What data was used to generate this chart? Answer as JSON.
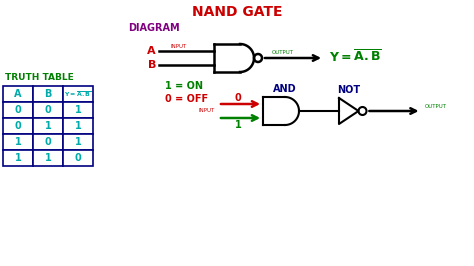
{
  "title": "NAND GATE",
  "title_color": "#cc0000",
  "diagram_label": "DIAGRAM",
  "diagram_label_color": "#800080",
  "truth_table_label": "TRUTH TABLE",
  "truth_table_label_color": "#008000",
  "bg_color": "#ffffff",
  "and_label": "AND",
  "not_label": "NOT",
  "output_label": "OUTPUT",
  "input_label": "INPUT",
  "on_label": "1 = ON",
  "off_label": "0 = OFF",
  "on_color": "#008000",
  "off_color": "#cc0000",
  "table_headers": [
    "A",
    "B",
    "Y = A.B"
  ],
  "table_data": [
    [
      "0",
      "0",
      "1"
    ],
    [
      "0",
      "1",
      "1"
    ],
    [
      "1",
      "0",
      "1"
    ],
    [
      "1",
      "1",
      "0"
    ]
  ],
  "table_header_color": "#00aaaa",
  "table_data_color": "#00aaaa",
  "table_border_color": "#000080",
  "gate_color": "#000000",
  "label_a_color": "#cc0000",
  "label_b_color": "#cc0000",
  "input_label_color": "#cc0000",
  "output_label_color": "#008000",
  "y_label_color": "#008000",
  "and_not_label_color": "#000080",
  "arrow_red_color": "#cc0000",
  "arrow_green_color": "#008000"
}
